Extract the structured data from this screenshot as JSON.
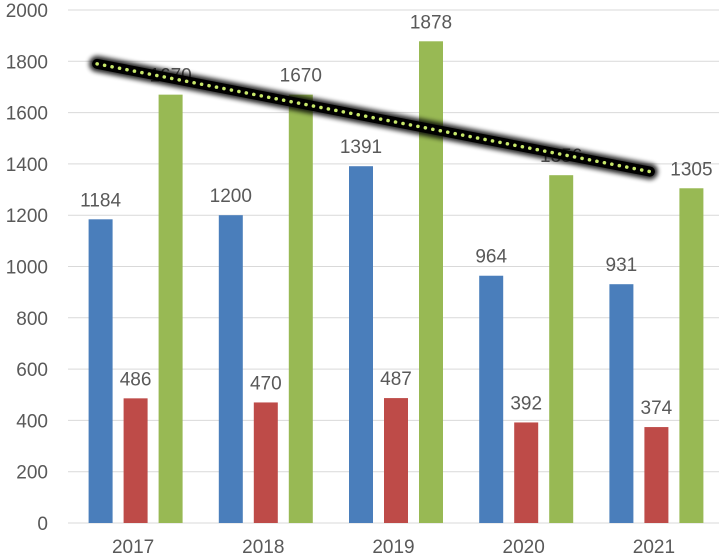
{
  "chart_data": {
    "type": "bar",
    "categories": [
      "2017",
      "2018",
      "2019",
      "2020",
      "2021"
    ],
    "series": [
      {
        "values": [
          1184,
          1200,
          1391,
          964,
          931
        ],
        "color": "#4a7ebb"
      },
      {
        "values": [
          486,
          470,
          487,
          392,
          374
        ],
        "color": "#be4b48"
      },
      {
        "values": [
          1670,
          1670,
          1878,
          1356,
          1305
        ],
        "color": "#98b954"
      }
    ],
    "ylim": [
      0,
      2000
    ],
    "yticks": [
      0,
      200,
      400,
      600,
      800,
      1000,
      1200,
      1400,
      1600,
      1800,
      2000
    ],
    "grid": true,
    "legend": "none",
    "annotation": {
      "type": "trend-line",
      "from": {
        "category": "2017",
        "value": 1790
      },
      "to": {
        "category": "2021",
        "value": 1370
      },
      "color": "#000000",
      "dot_color": "#c8e86a"
    }
  }
}
